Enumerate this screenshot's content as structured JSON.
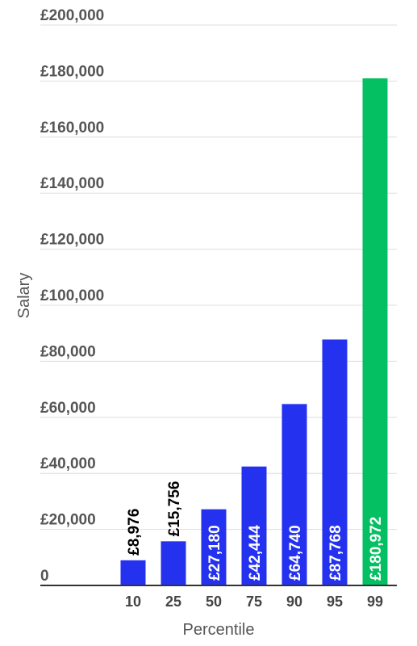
{
  "chart_data": {
    "type": "bar",
    "xlabel": "Percentile",
    "ylabel": "Salary",
    "categories": [
      "10",
      "25",
      "50",
      "75",
      "90",
      "95",
      "99"
    ],
    "values": [
      8976,
      15756,
      27180,
      42444,
      64740,
      87768,
      180972
    ],
    "value_labels": [
      "£8,976",
      "£15,756",
      "£27,180",
      "£42,444",
      "£64,740",
      "£87,768",
      "£180,972"
    ],
    "ylim": [
      0,
      200000
    ],
    "y_ticks": [
      {
        "value": 0,
        "label": "0"
      },
      {
        "value": 20000,
        "label": "£20,000"
      },
      {
        "value": 40000,
        "label": "£40,000"
      },
      {
        "value": 60000,
        "label": "£60,000"
      },
      {
        "value": 80000,
        "label": "£80,000"
      },
      {
        "value": 100000,
        "label": "£100,000"
      },
      {
        "value": 120000,
        "label": "£120,000"
      },
      {
        "value": 140000,
        "label": "£140,000"
      },
      {
        "value": 160000,
        "label": "£160,000"
      },
      {
        "value": 180000,
        "label": "£180,000"
      },
      {
        "value": 200000,
        "label": "£200,000"
      }
    ],
    "grid": true,
    "colors": {
      "bar": "#2432f0",
      "highlight": "#05c062",
      "grid": "#dddddd",
      "axis": "#333333"
    },
    "highlight_index": 6
  }
}
